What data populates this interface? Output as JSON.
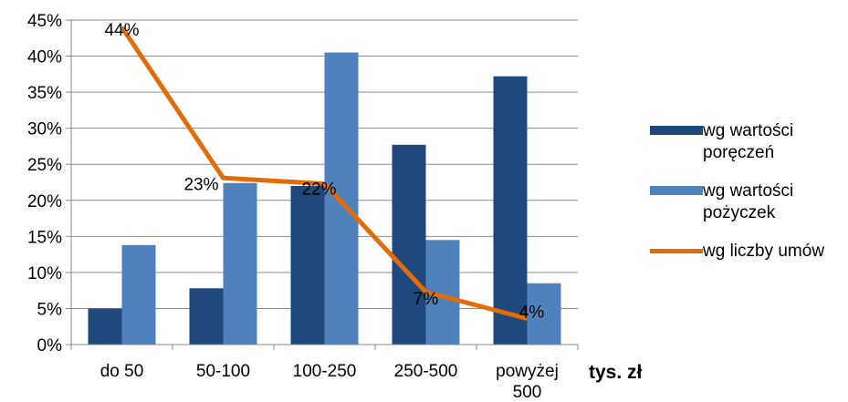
{
  "chart_data": {
    "type": "bar",
    "categories": [
      "do 50",
      "50-100",
      "100-250",
      "250-500",
      "powyżej 500"
    ],
    "category_lines": [
      [
        "do 50"
      ],
      [
        "50-100"
      ],
      [
        "100-250"
      ],
      [
        "250-500"
      ],
      [
        "powyżej",
        "500"
      ]
    ],
    "series": [
      {
        "name": "wg wartości poręczeń",
        "type": "bar",
        "values": [
          5,
          7.8,
          22,
          27.7,
          37.2
        ],
        "color": "#1f497d"
      },
      {
        "name": "wg wartości pożyczek",
        "type": "bar",
        "values": [
          13.8,
          22.4,
          40.5,
          14.5,
          8.5
        ],
        "color": "#4f81bd"
      },
      {
        "name": "wg liczby umów",
        "type": "line",
        "values": [
          44,
          23.1,
          22.3,
          7.3,
          3.6
        ],
        "color": "#e36c09",
        "data_labels": [
          "44%",
          "23%",
          "22%",
          "7%",
          "4%"
        ]
      }
    ],
    "ylim": [
      0,
      45
    ],
    "y_ticks": [
      "0%",
      "5%",
      "10%",
      "15%",
      "20%",
      "25%",
      "30%",
      "35%",
      "40%",
      "45%"
    ],
    "grid": true,
    "legend_position": "right",
    "xlabel": "tys. zł",
    "title": "",
    "ylabel": ""
  },
  "legend": {
    "items": [
      {
        "label_lines": [
          "wg wartości",
          "poręczeń"
        ]
      },
      {
        "label_lines": [
          "wg wartości",
          "pożyczek"
        ]
      },
      {
        "label_lines": [
          "wg liczby umów"
        ]
      }
    ]
  },
  "unit_label": "tys. zł"
}
